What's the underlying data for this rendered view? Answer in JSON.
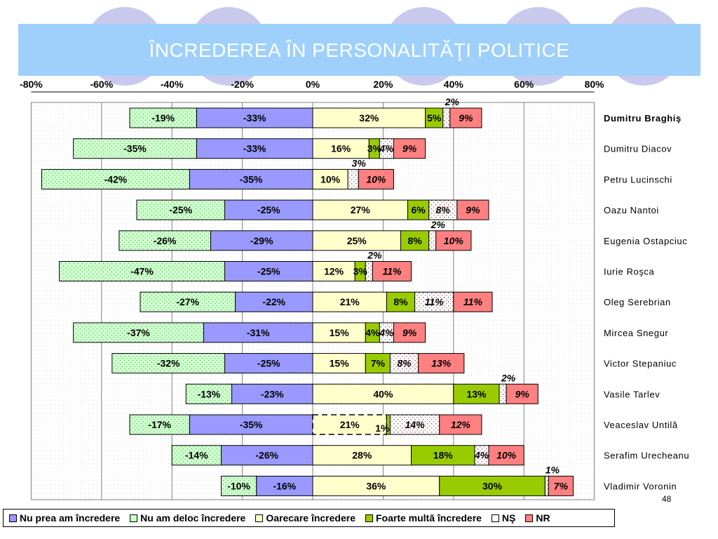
{
  "slide": {
    "title": "ÎNCREDEREA ÎN PERSONALITĂŢI POLITICE",
    "page_number": "48"
  },
  "colors": {
    "banner": "#9ed0fb",
    "nu_prea": "#9999ff",
    "nu_deloc": "#ccffcc",
    "oarecare": "#ffffcc",
    "foarte": "#99cc00",
    "ns": "#ffffff",
    "nr": "#ff8080"
  },
  "chart_data": {
    "type": "bar",
    "orientation": "horizontal-diverging-stacked",
    "xlim": [
      -80,
      80
    ],
    "x_ticks": [
      "-80%",
      "-60%",
      "-40%",
      "-20%",
      "0%",
      "20%",
      "40%",
      "60%",
      "80%"
    ],
    "x_tick_values": [
      -80,
      -60,
      -40,
      -20,
      0,
      20,
      40,
      60,
      80
    ],
    "grid": "vertical",
    "legend_position": "bottom",
    "categories": [
      "Dumitru Braghiş",
      "Dumitru Diacov",
      "Petru Lucinschi",
      "Oazu Nantoi",
      "Eugenia Ostapciuc",
      "Iurie Roşca",
      "Oleg Serebrian",
      "Mircea Snegur",
      "Victor Stepaniuc",
      "Vasile Tarlev",
      "Veaceslav Untilă",
      "Serafim Urecheanu",
      "Vladimir Voronin"
    ],
    "series": [
      {
        "key": "nu_deloc",
        "name": "Nu am deloc încredere",
        "values": [
          -19,
          -35,
          -42,
          -25,
          -26,
          -47,
          -27,
          -37,
          -32,
          -13,
          -17,
          -14,
          -10
        ],
        "labels": [
          "-19%",
          "-35%",
          "-42%",
          "-25%",
          "-26%",
          "-47%",
          "-27%",
          "-37%",
          "-32%",
          "-13%",
          "-17%",
          "-14%",
          "-10%"
        ]
      },
      {
        "key": "nu_prea",
        "name": "Nu prea am încredere",
        "values": [
          -33,
          -33,
          -35,
          -25,
          -29,
          -25,
          -22,
          -31,
          -25,
          -23,
          -35,
          -26,
          -16
        ],
        "labels": [
          "-33%",
          "-33%",
          "-35%",
          "-25%",
          "-29%",
          "-25%",
          "-22%",
          "-31%",
          "-25%",
          "-23%",
          "-35%",
          "-26%",
          "-16%"
        ]
      },
      {
        "key": "oarecare",
        "name": "Oarecare încredere",
        "values": [
          32,
          16,
          10,
          27,
          25,
          12,
          21,
          15,
          15,
          40,
          21,
          28,
          36
        ],
        "labels": [
          "32%",
          "16%",
          "10%",
          "27%",
          "25%",
          "12%",
          "21%",
          "15%",
          "15%",
          "40%",
          "21%",
          "28%",
          "36%"
        ]
      },
      {
        "key": "foarte",
        "name": "Foarte multă încredere",
        "values": [
          5,
          3,
          0,
          6,
          8,
          3,
          8,
          4,
          7,
          13,
          1,
          18,
          30
        ],
        "labels": [
          "5%",
          "3%",
          "",
          "6%",
          "8%",
          "3%",
          "8%",
          "4%",
          "7%",
          "13%",
          "1%",
          "18%",
          "30%"
        ]
      },
      {
        "key": "ns",
        "name": "NŞ",
        "values": [
          2,
          4,
          3,
          8,
          2,
          2,
          11,
          4,
          8,
          2,
          14,
          4,
          1
        ],
        "labels": [
          "2%",
          "4%",
          "3%",
          "8%",
          "2%",
          "2%",
          "11%",
          "4%",
          "8%",
          "2%",
          "14%",
          "4%",
          "1%"
        ]
      },
      {
        "key": "nr",
        "name": "NR",
        "values": [
          9,
          9,
          10,
          9,
          10,
          11,
          11,
          9,
          13,
          9,
          12,
          10,
          7
        ],
        "labels": [
          "9%",
          "9%",
          "10%",
          "9%",
          "10%",
          "11%",
          "11%",
          "9%",
          "13%",
          "9%",
          "12%",
          "10%",
          "7%"
        ]
      }
    ]
  },
  "legend": [
    {
      "key": "nu_prea",
      "label": "Nu prea am încredere"
    },
    {
      "key": "nu_deloc",
      "label": "Nu am deloc încredere"
    },
    {
      "key": "oarecare",
      "label": "Oarecare încredere"
    },
    {
      "key": "foarte",
      "label": "Foarte multă încredere"
    },
    {
      "key": "ns",
      "label": "NŞ"
    },
    {
      "key": "nr",
      "label": "NR"
    }
  ]
}
